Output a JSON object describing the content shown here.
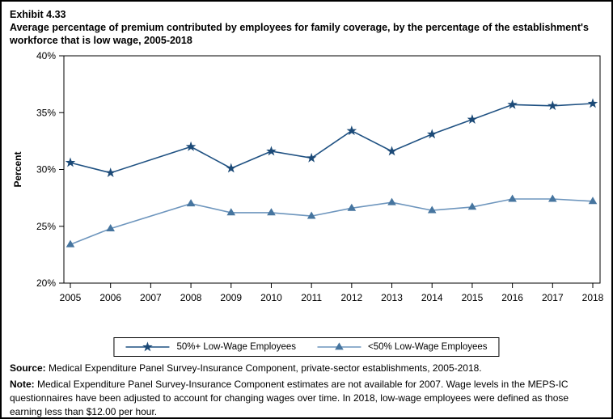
{
  "exhibit_label": "Exhibit 4.33",
  "title": "Average percentage of premium contributed by employees for family coverage, by the percentage of the establishment's workforce that is low wage, 2005-2018",
  "chart_data": {
    "type": "line",
    "title": "Average percentage of premium contributed by employees for family coverage, by the percentage of the establishment's workforce that is low wage, 2005-2018",
    "xlabel": "",
    "ylabel": "Percent",
    "ylim": [
      20,
      40
    ],
    "ytick_step": 5,
    "ytick_suffix": "%",
    "x_ticks": [
      2005,
      2006,
      2007,
      2008,
      2009,
      2010,
      2011,
      2012,
      2013,
      2014,
      2015,
      2016,
      2017,
      2018
    ],
    "grid": false,
    "legend_position": "bottom",
    "series": [
      {
        "name": "50%+ Low-Wage Employees",
        "marker": "star",
        "color": "#1c4a77",
        "line_color": "#1f5182",
        "x": [
          2005,
          2006,
          2008,
          2009,
          2010,
          2011,
          2012,
          2013,
          2014,
          2015,
          2016,
          2017,
          2018
        ],
        "values": [
          30.6,
          29.7,
          32.0,
          30.1,
          31.6,
          31.0,
          33.4,
          31.6,
          33.1,
          34.4,
          35.7,
          35.6,
          35.8
        ]
      },
      {
        "name": "<50% Low-Wage Employees",
        "marker": "triangle",
        "color": "#46759f",
        "line_color": "#6d95bd",
        "x": [
          2005,
          2006,
          2008,
          2009,
          2010,
          2011,
          2012,
          2013,
          2014,
          2015,
          2016,
          2017,
          2018
        ],
        "values": [
          23.4,
          24.8,
          27.0,
          26.2,
          26.2,
          25.9,
          26.6,
          27.1,
          26.4,
          26.7,
          27.4,
          27.4,
          27.2
        ]
      }
    ]
  },
  "footer": {
    "source_label": "Source:",
    "source_text": " Medical Expenditure Panel Survey-Insurance Component, private-sector establishments, 2005-2018.",
    "note_label": "Note:",
    "note_text": " Medical Expenditure Panel Survey-Insurance Component estimates are not available for 2007. Wage levels in the MEPS-IC questionnaires have been adjusted to account for changing wages over time.  In 2018, low-wage employees were defined as those earning less than $12.00 per hour."
  }
}
